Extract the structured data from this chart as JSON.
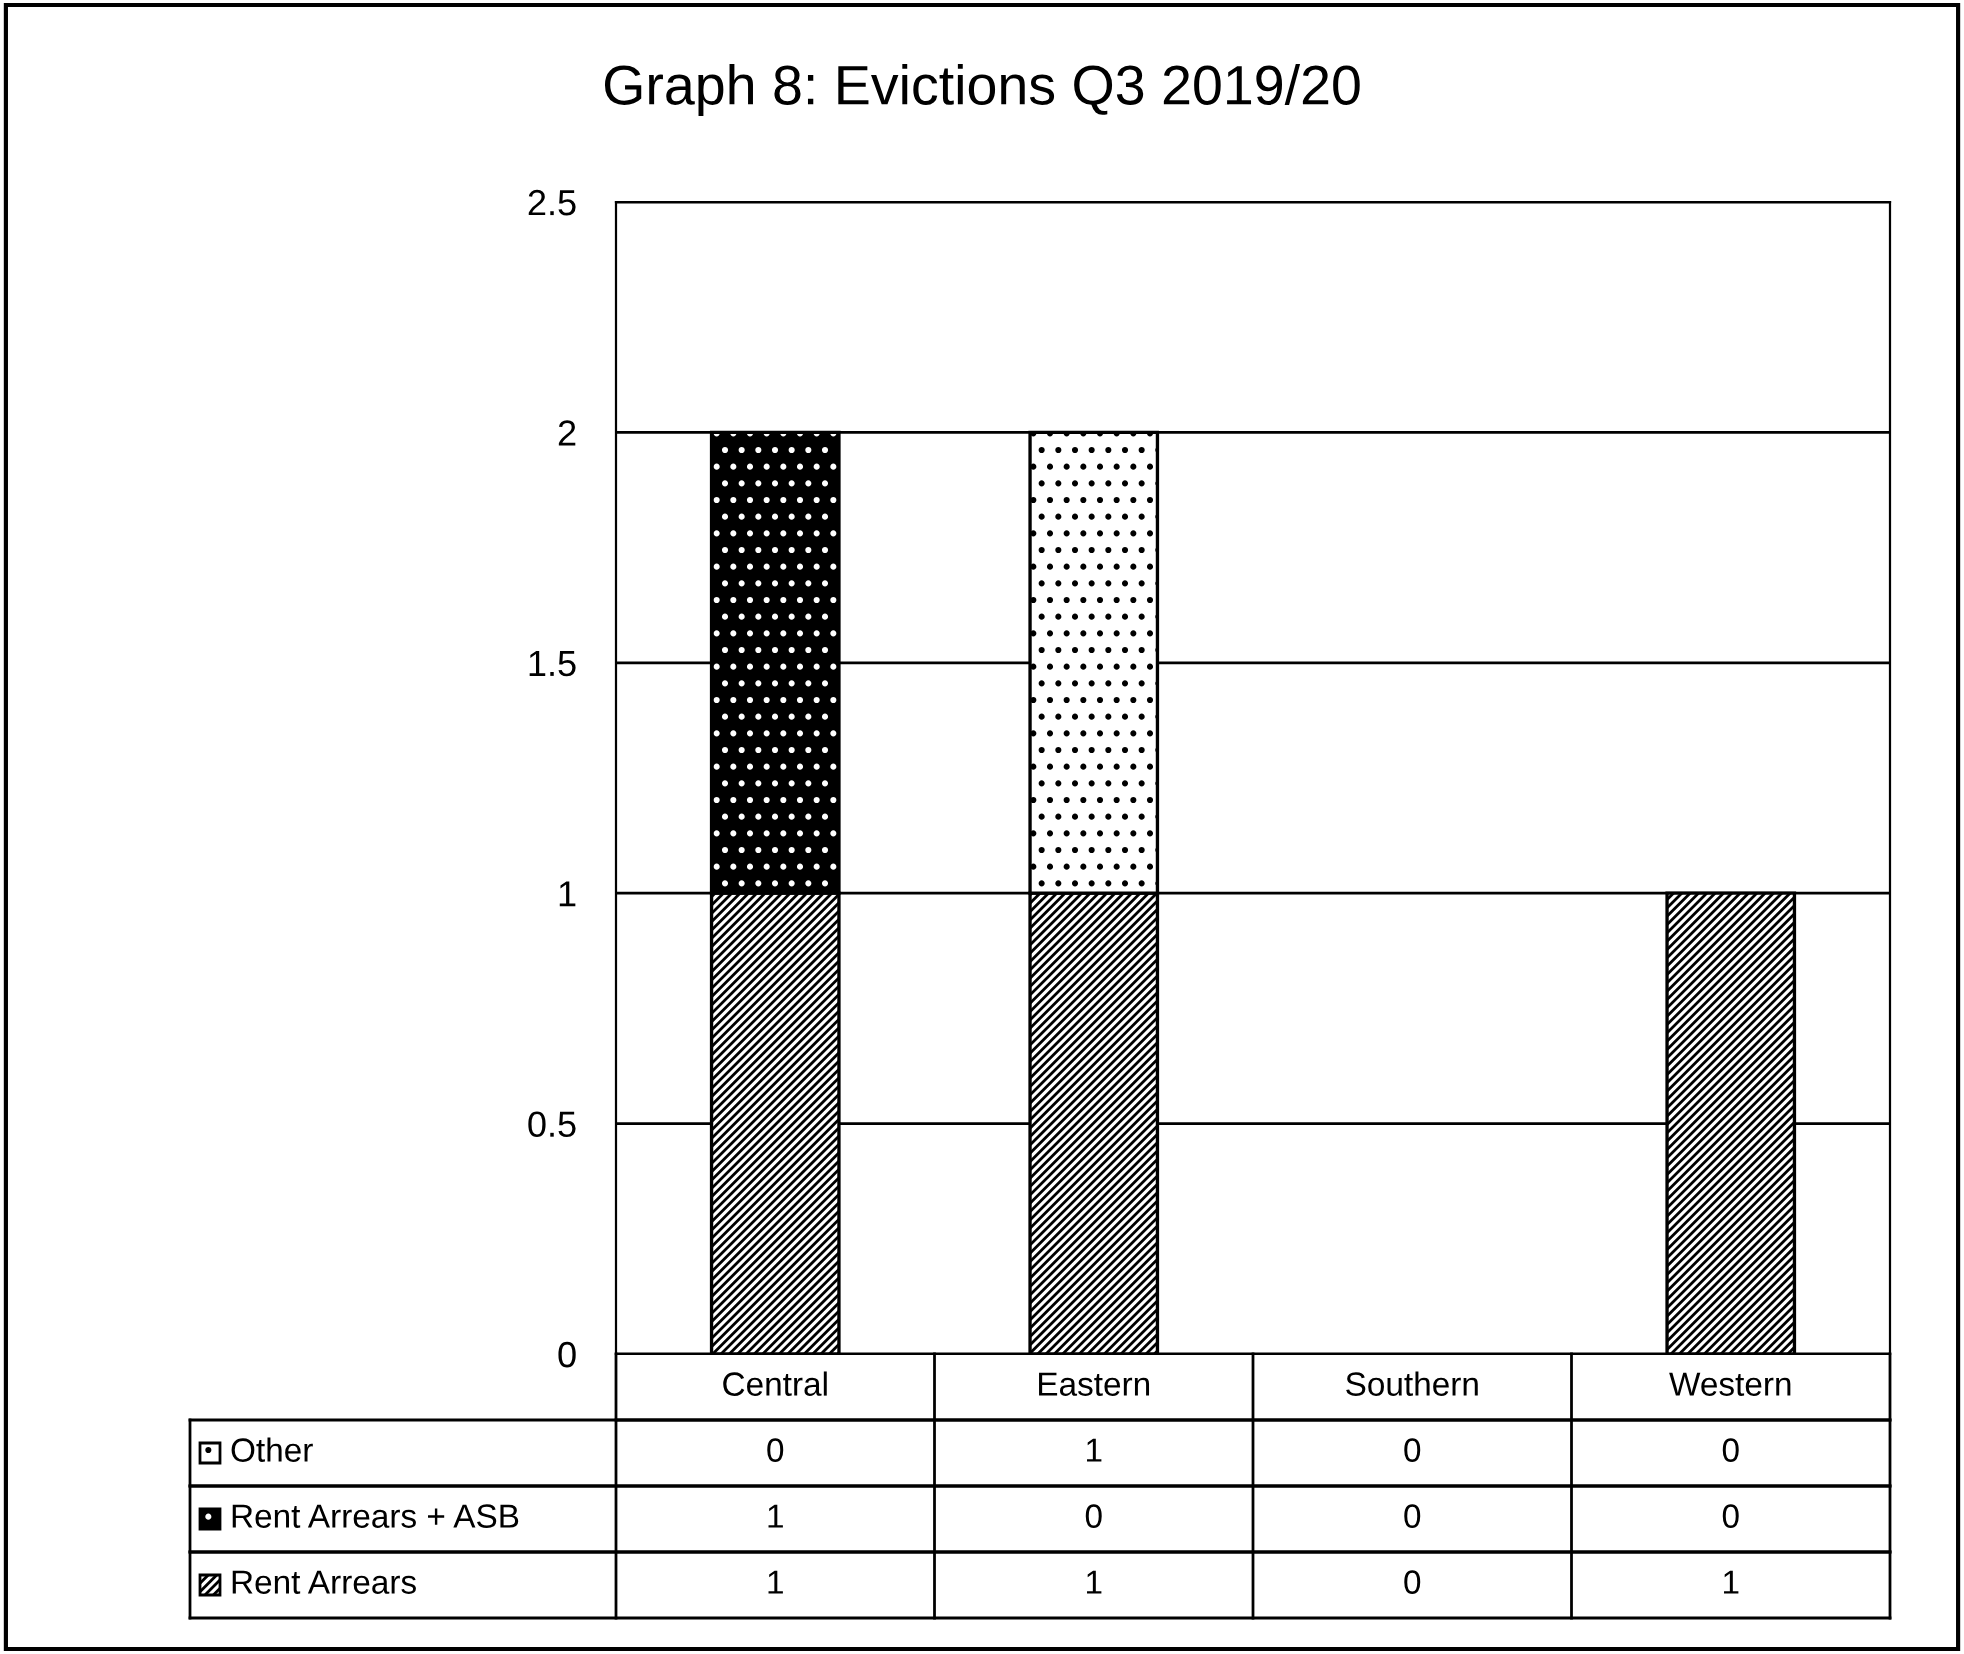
{
  "chart_data": {
    "type": "bar",
    "title": "Graph 8: Evictions Q3 2019/20",
    "stacked": true,
    "categories": [
      "Central",
      "Eastern",
      "Southern",
      "Western"
    ],
    "series": [
      {
        "name": "Rent Arrears",
        "color": "#ffffff",
        "values": [
          1,
          1,
          0,
          1
        ]
      },
      {
        "name": "Rent Arrears + ASB",
        "color": "#000000",
        "values": [
          1,
          0,
          0,
          0
        ]
      },
      {
        "name": "Other",
        "color": "#ffffff",
        "values": [
          0,
          1,
          0,
          0
        ]
      }
    ],
    "ylim": [
      0,
      2.5
    ],
    "yticks": [
      0,
      0.5,
      1,
      1.5,
      2,
      2.5
    ],
    "grid": "y",
    "legend": "bottom",
    "data_labels": true
  }
}
